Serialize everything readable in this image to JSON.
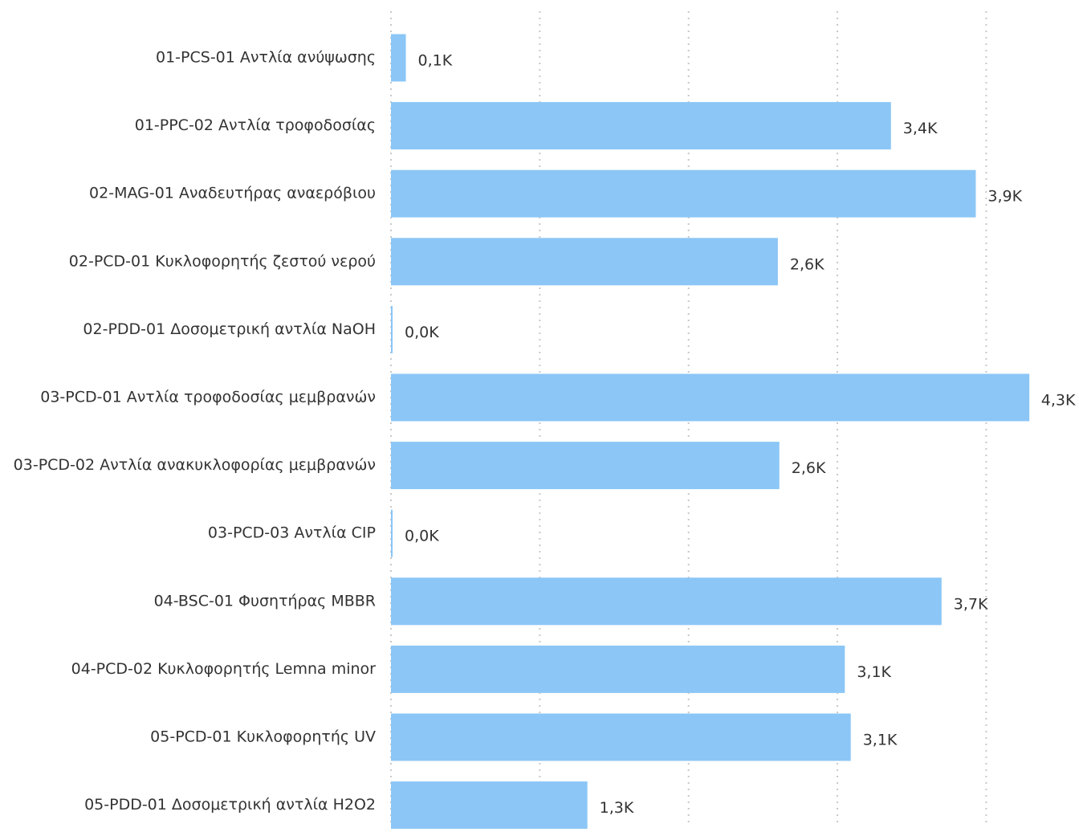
{
  "chart_data": {
    "type": "bar",
    "orientation": "horizontal",
    "categories": [
      "01-PCS-01 Αντλία ανύψωσης",
      "01-PPC-02 Αντλία τροφοδοσίας",
      "02-MAG-01 Αναδευτήρας αναερόβιου",
      "02-PCD-01 Κυκλοφορητής ζεστού νερού",
      "02-PDD-01 Δοσομετρική αντλία NaOH",
      "03-PCD-01 Αντλία τροφοδοσίας μεμβρανών",
      "03-PCD-02 Αντλία ανακυκλοφορίας μεμβρανών",
      "03-PCD-03 Αντλία CIP",
      "04-BSC-01 Φυσητήρας MBBR",
      "04-PCD-02 Κυκλοφορητής Lemna minor",
      "05-PCD-01 Κυκλοφορητής UV",
      "05-PDD-01 Δοσομετρική αντλία H2O2"
    ],
    "values": [
      100,
      3360,
      3930,
      2600,
      10,
      4290,
      2610,
      10,
      3700,
      3050,
      3090,
      1320
    ],
    "data_labels": [
      "0,1K",
      "3,4K",
      "3,9K",
      "2,6K",
      "0,0K",
      "4,3K",
      "2,6K",
      "0,0K",
      "3,7K",
      "3,1K",
      "3,1K",
      "1,3K"
    ],
    "xlim": [
      0,
      4300
    ],
    "gridlines_at": [
      0,
      1000,
      2000,
      3000,
      4000
    ],
    "grid": true,
    "gridline_style": "dotted",
    "bar_color": "#8BC6F6",
    "gridline_color": "#C8C8C8",
    "label_color": "#333333",
    "title": "",
    "xlabel": "",
    "ylabel": ""
  }
}
